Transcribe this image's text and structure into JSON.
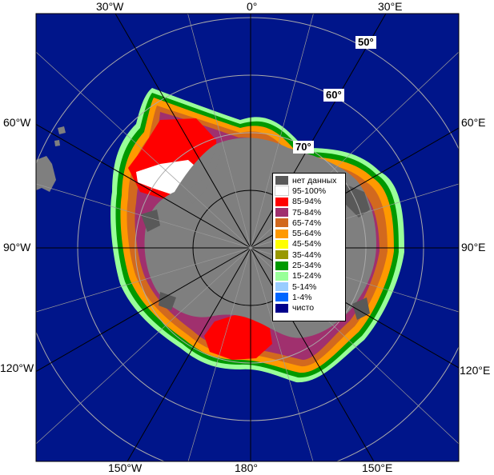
{
  "map": {
    "edge_labels": {
      "top_30w": "30°W",
      "top_0": "0°",
      "top_30e": "30°E",
      "left_60w": "60°W",
      "left_90w": "90°W",
      "left_120w": "120°W",
      "right_60e": "60°E",
      "right_90e": "90°E",
      "right_120e": "120°E",
      "bottom_150w": "150°W",
      "bottom_180": "180°",
      "bottom_150e": "150°E"
    },
    "latitude_labels": {
      "lat50": "50°",
      "lat60": "60°",
      "lat70": "70°"
    },
    "colors": {
      "ocean": "#00158a",
      "land": "#7f7f7f",
      "no_data": "#595959"
    }
  },
  "legend": {
    "items": [
      {
        "label": "нет данных",
        "color": "#595959"
      },
      {
        "label": "95-100%",
        "color": "#ffffff"
      },
      {
        "label": "85-94%",
        "color": "#ff0000"
      },
      {
        "label": "75-84%",
        "color": "#a0306e"
      },
      {
        "label": "65-74%",
        "color": "#d2691e"
      },
      {
        "label": "55-64%",
        "color": "#ff9900"
      },
      {
        "label": "45-54%",
        "color": "#ffff00"
      },
      {
        "label": "35-44%",
        "color": "#999900"
      },
      {
        "label": "25-34%",
        "color": "#009900"
      },
      {
        "label": "15-24%",
        "color": "#99ff99"
      },
      {
        "label": "5-14%",
        "color": "#99ccff"
      },
      {
        "label": "1-4%",
        "color": "#0066ff"
      },
      {
        "label": "чисто",
        "color": "#00008b"
      }
    ]
  }
}
